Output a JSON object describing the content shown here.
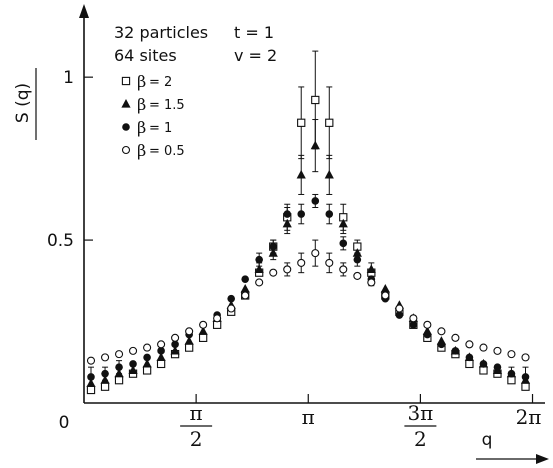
{
  "chart_data": {
    "type": "scatter",
    "x_ticks": [
      {
        "value": 0,
        "label": "0"
      },
      {
        "value": 1.5708,
        "num": "π",
        "den": "2"
      },
      {
        "value": 3.1416,
        "label": "π"
      },
      {
        "value": 4.7124,
        "num": "3π",
        "den": "2"
      },
      {
        "value": 6.2832,
        "label": "2π"
      }
    ],
    "y_ticks": [
      {
        "value": 0.5,
        "label": "0.5"
      },
      {
        "value": 1.0,
        "label": "1"
      }
    ],
    "xlabel": "q",
    "ylabel": "S (q)",
    "xlim": [
      0,
      6.43
    ],
    "ylim": [
      0,
      1.2
    ],
    "annotations": [
      {
        "id": "particles",
        "text": "32 particles"
      },
      {
        "id": "t",
        "text": "t = 1"
      },
      {
        "id": "sites",
        "text": "64 sites"
      },
      {
        "id": "v",
        "text": "v = 2"
      }
    ],
    "legend_placement": "top-left",
    "series": [
      {
        "name": "β = 2",
        "beta": "β",
        "value_label": "= 2",
        "marker": "open-square",
        "x": [
          0.098,
          0.295,
          0.491,
          0.687,
          0.884,
          1.08,
          1.276,
          1.473,
          1.669,
          1.865,
          2.062,
          2.258,
          2.454,
          2.651,
          2.847,
          3.043,
          3.24,
          3.436,
          3.632,
          3.829,
          4.025,
          4.221,
          4.418,
          4.614,
          4.81,
          5.007,
          5.203,
          5.399,
          5.596,
          5.792,
          5.988,
          6.185
        ],
        "y": [
          0.04,
          0.05,
          0.07,
          0.09,
          0.1,
          0.12,
          0.15,
          0.17,
          0.2,
          0.24,
          0.28,
          0.33,
          0.4,
          0.48,
          0.57,
          0.86,
          0.93,
          0.86,
          0.57,
          0.48,
          0.4,
          0.33,
          0.28,
          0.24,
          0.2,
          0.17,
          0.15,
          0.12,
          0.1,
          0.09,
          0.07,
          0.05
        ],
        "err": [
          0.01,
          0.01,
          0.01,
          0.01,
          0.01,
          0.01,
          0.01,
          0.01,
          0.01,
          0.01,
          0.01,
          0.01,
          0.01,
          0.02,
          0.04,
          0.11,
          0.15,
          0.11,
          0.04,
          0.02,
          0.01,
          0.01,
          0.01,
          0.01,
          0.01,
          0.01,
          0.01,
          0.01,
          0.01,
          0.01,
          0.01,
          0.01
        ]
      },
      {
        "name": "β = 1.5",
        "beta": "β",
        "value_label": "= 1.5",
        "marker": "filled-triangle",
        "x": [
          0.098,
          0.295,
          0.491,
          0.687,
          0.884,
          1.08,
          1.276,
          1.473,
          1.669,
          1.865,
          2.062,
          2.258,
          2.454,
          2.651,
          2.847,
          3.043,
          3.24,
          3.436,
          3.632,
          3.829,
          4.025,
          4.221,
          4.418,
          4.614,
          4.81,
          5.007,
          5.203,
          5.399,
          5.596,
          5.792,
          5.988,
          6.185
        ],
        "y": [
          0.06,
          0.07,
          0.09,
          0.1,
          0.12,
          0.14,
          0.16,
          0.19,
          0.22,
          0.26,
          0.3,
          0.35,
          0.41,
          0.46,
          0.55,
          0.7,
          0.79,
          0.7,
          0.55,
          0.46,
          0.41,
          0.35,
          0.3,
          0.26,
          0.22,
          0.19,
          0.16,
          0.14,
          0.12,
          0.1,
          0.09,
          0.07
        ],
        "err": [
          0.01,
          0.01,
          0.01,
          0.01,
          0.01,
          0.01,
          0.01,
          0.01,
          0.01,
          0.01,
          0.01,
          0.01,
          0.02,
          0.02,
          0.03,
          0.06,
          0.08,
          0.06,
          0.03,
          0.02,
          0.02,
          0.01,
          0.01,
          0.01,
          0.01,
          0.01,
          0.01,
          0.01,
          0.01,
          0.01,
          0.01,
          0.01
        ]
      },
      {
        "name": "β = 1",
        "beta": "β",
        "value_label": "= 1",
        "marker": "filled-circle",
        "x": [
          0.098,
          0.295,
          0.491,
          0.687,
          0.884,
          1.08,
          1.276,
          1.473,
          1.669,
          1.865,
          2.062,
          2.258,
          2.454,
          2.651,
          2.847,
          3.043,
          3.24,
          3.436,
          3.632,
          3.829,
          4.025,
          4.221,
          4.418,
          4.614,
          4.81,
          5.007,
          5.203,
          5.399,
          5.596,
          5.792,
          5.988,
          6.185
        ],
        "y": [
          0.08,
          0.09,
          0.11,
          0.12,
          0.14,
          0.16,
          0.18,
          0.21,
          0.24,
          0.27,
          0.32,
          0.38,
          0.44,
          0.48,
          0.58,
          0.58,
          0.62,
          0.58,
          0.49,
          0.44,
          0.38,
          0.32,
          0.27,
          0.24,
          0.21,
          0.18,
          0.16,
          0.14,
          0.12,
          0.11,
          0.09,
          0.08
        ],
        "err": [
          0.03,
          0.02,
          0.02,
          0.01,
          0.01,
          0.01,
          0.01,
          0.01,
          0.01,
          0.01,
          0.01,
          0.01,
          0.02,
          0.02,
          0.02,
          0.03,
          0.02,
          0.03,
          0.02,
          0.02,
          0.02,
          0.01,
          0.01,
          0.01,
          0.01,
          0.01,
          0.01,
          0.01,
          0.01,
          0.01,
          0.02,
          0.03
        ]
      },
      {
        "name": "β = 0.5",
        "beta": "β",
        "value_label": "= 0.5",
        "marker": "open-circle",
        "x": [
          0.098,
          0.295,
          0.491,
          0.687,
          0.884,
          1.08,
          1.276,
          1.473,
          1.669,
          1.865,
          2.062,
          2.258,
          2.454,
          2.651,
          2.847,
          3.043,
          3.24,
          3.436,
          3.632,
          3.829,
          4.025,
          4.221,
          4.418,
          4.614,
          4.81,
          5.007,
          5.203,
          5.399,
          5.596,
          5.792,
          5.988,
          6.185
        ],
        "y": [
          0.13,
          0.14,
          0.15,
          0.16,
          0.17,
          0.18,
          0.2,
          0.22,
          0.24,
          0.26,
          0.29,
          0.33,
          0.37,
          0.4,
          0.41,
          0.43,
          0.46,
          0.43,
          0.41,
          0.39,
          0.37,
          0.33,
          0.29,
          0.26,
          0.24,
          0.22,
          0.2,
          0.18,
          0.17,
          0.16,
          0.15,
          0.14
        ],
        "err": [
          0.01,
          0.01,
          0.01,
          0.01,
          0.01,
          0.01,
          0.01,
          0.01,
          0.01,
          0.01,
          0.01,
          0.01,
          0.01,
          0.01,
          0.02,
          0.03,
          0.04,
          0.03,
          0.02,
          0.01,
          0.01,
          0.01,
          0.01,
          0.01,
          0.01,
          0.01,
          0.01,
          0.01,
          0.01,
          0.01,
          0.01,
          0.01
        ]
      }
    ]
  }
}
